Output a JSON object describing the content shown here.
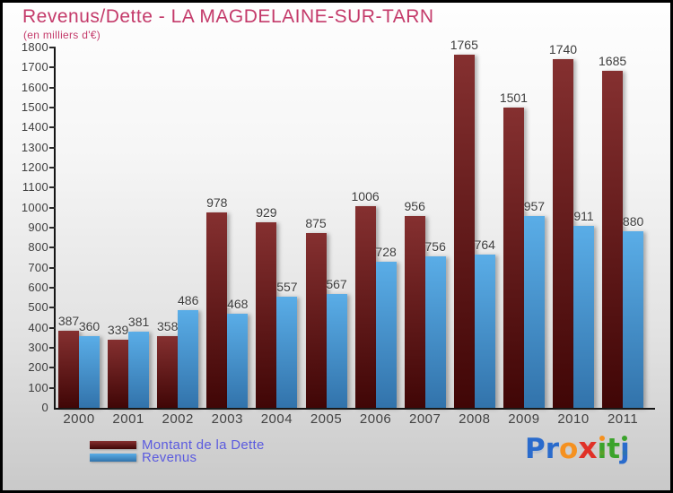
{
  "chart_data": {
    "type": "bar",
    "title": "Revenus/Dette - LA MAGDELAINE-SUR-TARN",
    "subtitle": "(en milliers d'€)",
    "categories": [
      "2000",
      "2001",
      "2002",
      "2003",
      "2004",
      "2005",
      "2006",
      "2007",
      "2008",
      "2009",
      "2010",
      "2011"
    ],
    "series": [
      {
        "name": "Montant de la Dette",
        "key": "dette",
        "color_top": "#853030",
        "color_bottom": "#400606",
        "swatch": "#6b1111",
        "values": [
          387,
          339,
          358,
          978,
          929,
          875,
          1006,
          956,
          1765,
          1501,
          1740,
          1685
        ]
      },
      {
        "name": "Revenus",
        "key": "revenus",
        "color_top": "#5aade7",
        "color_bottom": "#3273ab",
        "swatch": "#4da0dc",
        "values": [
          360,
          381,
          486,
          468,
          557,
          567,
          728,
          756,
          764,
          957,
          911,
          880
        ]
      }
    ],
    "ylim": [
      0,
      1800
    ],
    "ytick_step": 100,
    "grid": false,
    "legend_position": "bottom-left",
    "value_labels_shown": true
  },
  "colors": {
    "title": "#c43a6a",
    "legend_text": "#5b5bdf",
    "axis": "#151515",
    "tick_text": "#3d3d3d"
  },
  "logo": {
    "text": "Proxiti",
    "letters": [
      {
        "ch": "P",
        "color": "#2a6bcc"
      },
      {
        "ch": "r",
        "color": "#2a6bcc"
      },
      {
        "ch": "o",
        "color": "#f59120"
      },
      {
        "ch": "x",
        "color": "#e03127",
        "x": true
      },
      {
        "ch": "ı",
        "color": "#3ba32b",
        "dot": "#f59120"
      },
      {
        "ch": "t",
        "color": "#3ba32b"
      },
      {
        "ch": "ȷ",
        "color": "#2a6bcc",
        "dot": "#3ba32b"
      }
    ]
  }
}
